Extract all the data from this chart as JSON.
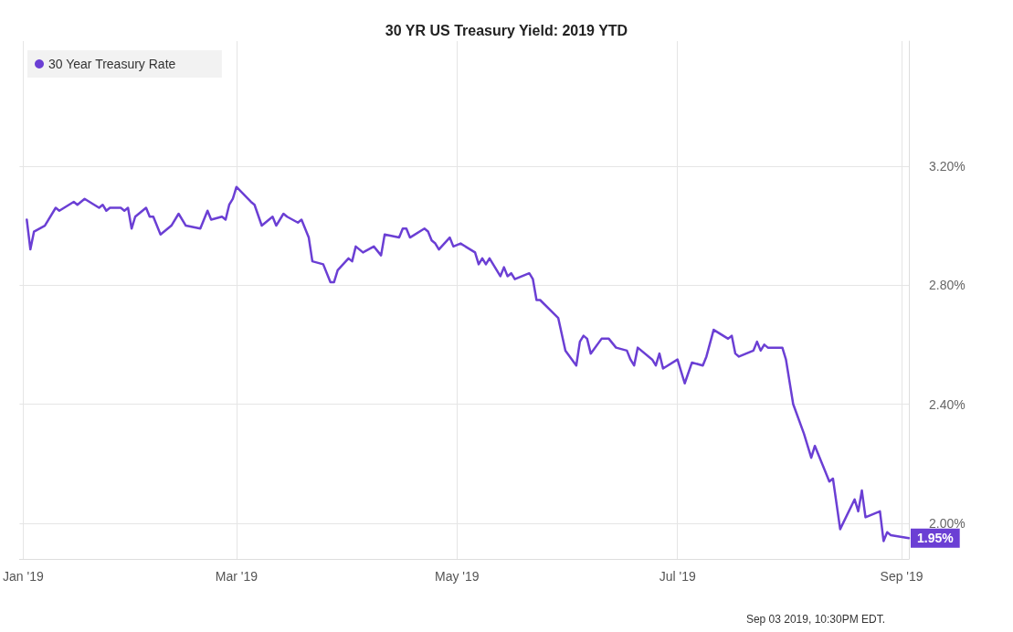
{
  "chart_data": {
    "type": "line",
    "title": "30 YR US Treasury Yield: 2019 YTD",
    "x": [
      "2019-01-02",
      "2019-01-03",
      "2019-01-04",
      "2019-01-07",
      "2019-01-10",
      "2019-01-11",
      "2019-01-15",
      "2019-01-16",
      "2019-01-18",
      "2019-01-22",
      "2019-01-23",
      "2019-01-24",
      "2019-01-25",
      "2019-01-28",
      "2019-01-29",
      "2019-01-30",
      "2019-01-31",
      "2019-02-01",
      "2019-02-04",
      "2019-02-05",
      "2019-02-06",
      "2019-02-08",
      "2019-02-11",
      "2019-02-13",
      "2019-02-15",
      "2019-02-19",
      "2019-02-21",
      "2019-02-22",
      "2019-02-25",
      "2019-02-26",
      "2019-02-27",
      "2019-02-28",
      "2019-03-01",
      "2019-03-05",
      "2019-03-06",
      "2019-03-08",
      "2019-03-11",
      "2019-03-12",
      "2019-03-14",
      "2019-03-15",
      "2019-03-18",
      "2019-03-19",
      "2019-03-21",
      "2019-03-22",
      "2019-03-25",
      "2019-03-27",
      "2019-03-28",
      "2019-03-29",
      "2019-04-01",
      "2019-04-02",
      "2019-04-03",
      "2019-04-05",
      "2019-04-08",
      "2019-04-10",
      "2019-04-11",
      "2019-04-15",
      "2019-04-16",
      "2019-04-17",
      "2019-04-18",
      "2019-04-22",
      "2019-04-23",
      "2019-04-24",
      "2019-04-25",
      "2019-04-26",
      "2019-04-29",
      "2019-04-30",
      "2019-05-02",
      "2019-05-06",
      "2019-05-07",
      "2019-05-08",
      "2019-05-09",
      "2019-05-10",
      "2019-05-13",
      "2019-05-14",
      "2019-05-15",
      "2019-05-16",
      "2019-05-17",
      "2019-05-21",
      "2019-05-22",
      "2019-05-23",
      "2019-05-24",
      "2019-05-29",
      "2019-05-31",
      "2019-06-03",
      "2019-06-04",
      "2019-06-05",
      "2019-06-06",
      "2019-06-07",
      "2019-06-10",
      "2019-06-12",
      "2019-06-14",
      "2019-06-17",
      "2019-06-18",
      "2019-06-19",
      "2019-06-20",
      "2019-06-24",
      "2019-06-25",
      "2019-06-26",
      "2019-06-27",
      "2019-07-01",
      "2019-07-03",
      "2019-07-05",
      "2019-07-08",
      "2019-07-09",
      "2019-07-11",
      "2019-07-15",
      "2019-07-16",
      "2019-07-17",
      "2019-07-18",
      "2019-07-22",
      "2019-07-23",
      "2019-07-24",
      "2019-07-25",
      "2019-07-26",
      "2019-07-30",
      "2019-07-31",
      "2019-08-02",
      "2019-08-05",
      "2019-08-07",
      "2019-08-08",
      "2019-08-12",
      "2019-08-13",
      "2019-08-15",
      "2019-08-19",
      "2019-08-20",
      "2019-08-21",
      "2019-08-22",
      "2019-08-26",
      "2019-08-27",
      "2019-08-28",
      "2019-08-29",
      "2019-09-03"
    ],
    "series": [
      {
        "name": "30 Year Treasury Rate",
        "color": "#6b3fd4",
        "values": [
          3.02,
          2.92,
          2.98,
          3.0,
          3.06,
          3.05,
          3.08,
          3.07,
          3.09,
          3.06,
          3.07,
          3.05,
          3.06,
          3.06,
          3.05,
          3.06,
          2.99,
          3.03,
          3.06,
          3.03,
          3.03,
          2.97,
          3.0,
          3.04,
          3.0,
          2.99,
          3.05,
          3.02,
          3.03,
          3.02,
          3.07,
          3.09,
          3.13,
          3.08,
          3.07,
          3.0,
          3.03,
          3.0,
          3.04,
          3.03,
          3.01,
          3.02,
          2.96,
          2.88,
          2.87,
          2.81,
          2.81,
          2.85,
          2.89,
          2.88,
          2.93,
          2.91,
          2.93,
          2.9,
          2.97,
          2.96,
          2.99,
          2.99,
          2.96,
          2.99,
          2.98,
          2.95,
          2.94,
          2.92,
          2.96,
          2.93,
          2.94,
          2.91,
          2.87,
          2.89,
          2.87,
          2.89,
          2.83,
          2.86,
          2.83,
          2.84,
          2.82,
          2.84,
          2.82,
          2.75,
          2.75,
          2.69,
          2.58,
          2.53,
          2.61,
          2.63,
          2.62,
          2.57,
          2.62,
          2.62,
          2.59,
          2.58,
          2.55,
          2.53,
          2.59,
          2.55,
          2.53,
          2.57,
          2.52,
          2.55,
          2.47,
          2.54,
          2.53,
          2.56,
          2.65,
          2.62,
          2.63,
          2.57,
          2.56,
          2.58,
          2.61,
          2.58,
          2.6,
          2.59,
          2.59,
          2.55,
          2.4,
          2.3,
          2.22,
          2.26,
          2.14,
          2.15,
          1.98,
          2.08,
          2.04,
          2.11,
          2.02,
          2.04,
          1.94,
          1.97,
          1.96,
          1.95
        ]
      }
    ],
    "xlim": [
      "2018-12-31",
      "2019-09-03"
    ],
    "xticks": [
      {
        "value": "2019-01-01",
        "label": "Jan '19"
      },
      {
        "value": "2019-03-01",
        "label": "Mar '19"
      },
      {
        "value": "2019-05-01",
        "label": "May '19"
      },
      {
        "value": "2019-07-01",
        "label": "Jul '19"
      },
      {
        "value": "2019-09-01",
        "label": "Sep '19"
      }
    ],
    "ylim": [
      1.88,
      3.62
    ],
    "yticks": [
      {
        "value": 2.0,
        "label": "2.00%"
      },
      {
        "value": 2.4,
        "label": "2.40%"
      },
      {
        "value": 2.8,
        "label": "2.80%"
      },
      {
        "value": 3.2,
        "label": "3.20%"
      }
    ],
    "grid": true,
    "legend": "top left",
    "marker": "none",
    "line_style": "solid",
    "annotations": [
      {
        "text": "1.95%",
        "x": "2019-09-03",
        "y": 1.95
      },
      "Sep 03 2019, 10:30PM EDT."
    ]
  }
}
